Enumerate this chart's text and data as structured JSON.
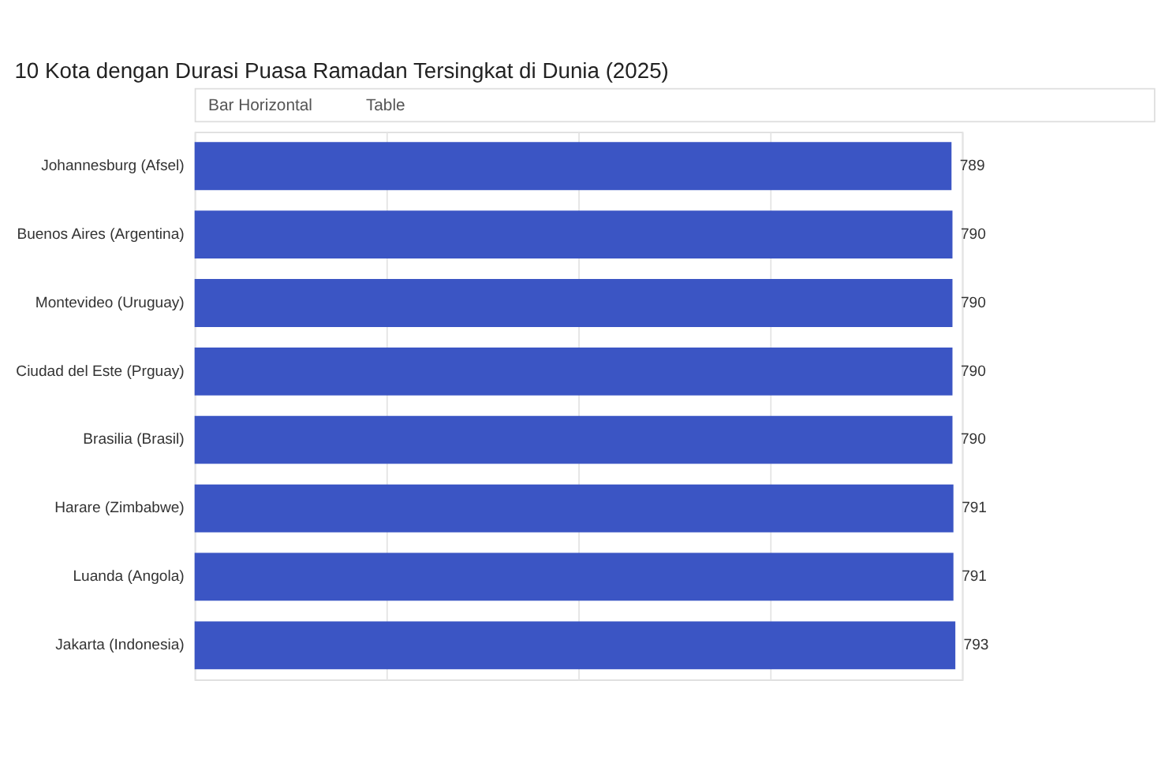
{
  "chart_data": {
    "type": "bar",
    "orientation": "horizontal",
    "title": "10 Kota dengan Durasi Puasa Ramadan Tersingkat di Dunia (2025)",
    "annotations": [
      "Bar Horizontal",
      "Table"
    ],
    "categories": [
      "Johannesburg (Afsel)",
      "Buenos Aires (Argentina)",
      "Montevideo (Uruguay)",
      "Ciudad del Este (Prguay)",
      "Brasilia (Brasil)",
      "Harare (Zimbabwe)",
      "Luanda (Angola)",
      "Jakarta (Indonesia)"
    ],
    "values": [
      789,
      790,
      790,
      790,
      790,
      791,
      791,
      793
    ],
    "color": "#3b55c4",
    "xlim": [
      0,
      800
    ],
    "xticks": [
      {
        "value": 0,
        "label": null
      },
      {
        "value": 200,
        "label": null
      },
      {
        "value": 400,
        "label": null
      },
      {
        "value": 600,
        "label": null
      },
      {
        "value": 800,
        "label": null
      }
    ],
    "grid": "x",
    "tick_labels": "y",
    "data_labels": true
  }
}
